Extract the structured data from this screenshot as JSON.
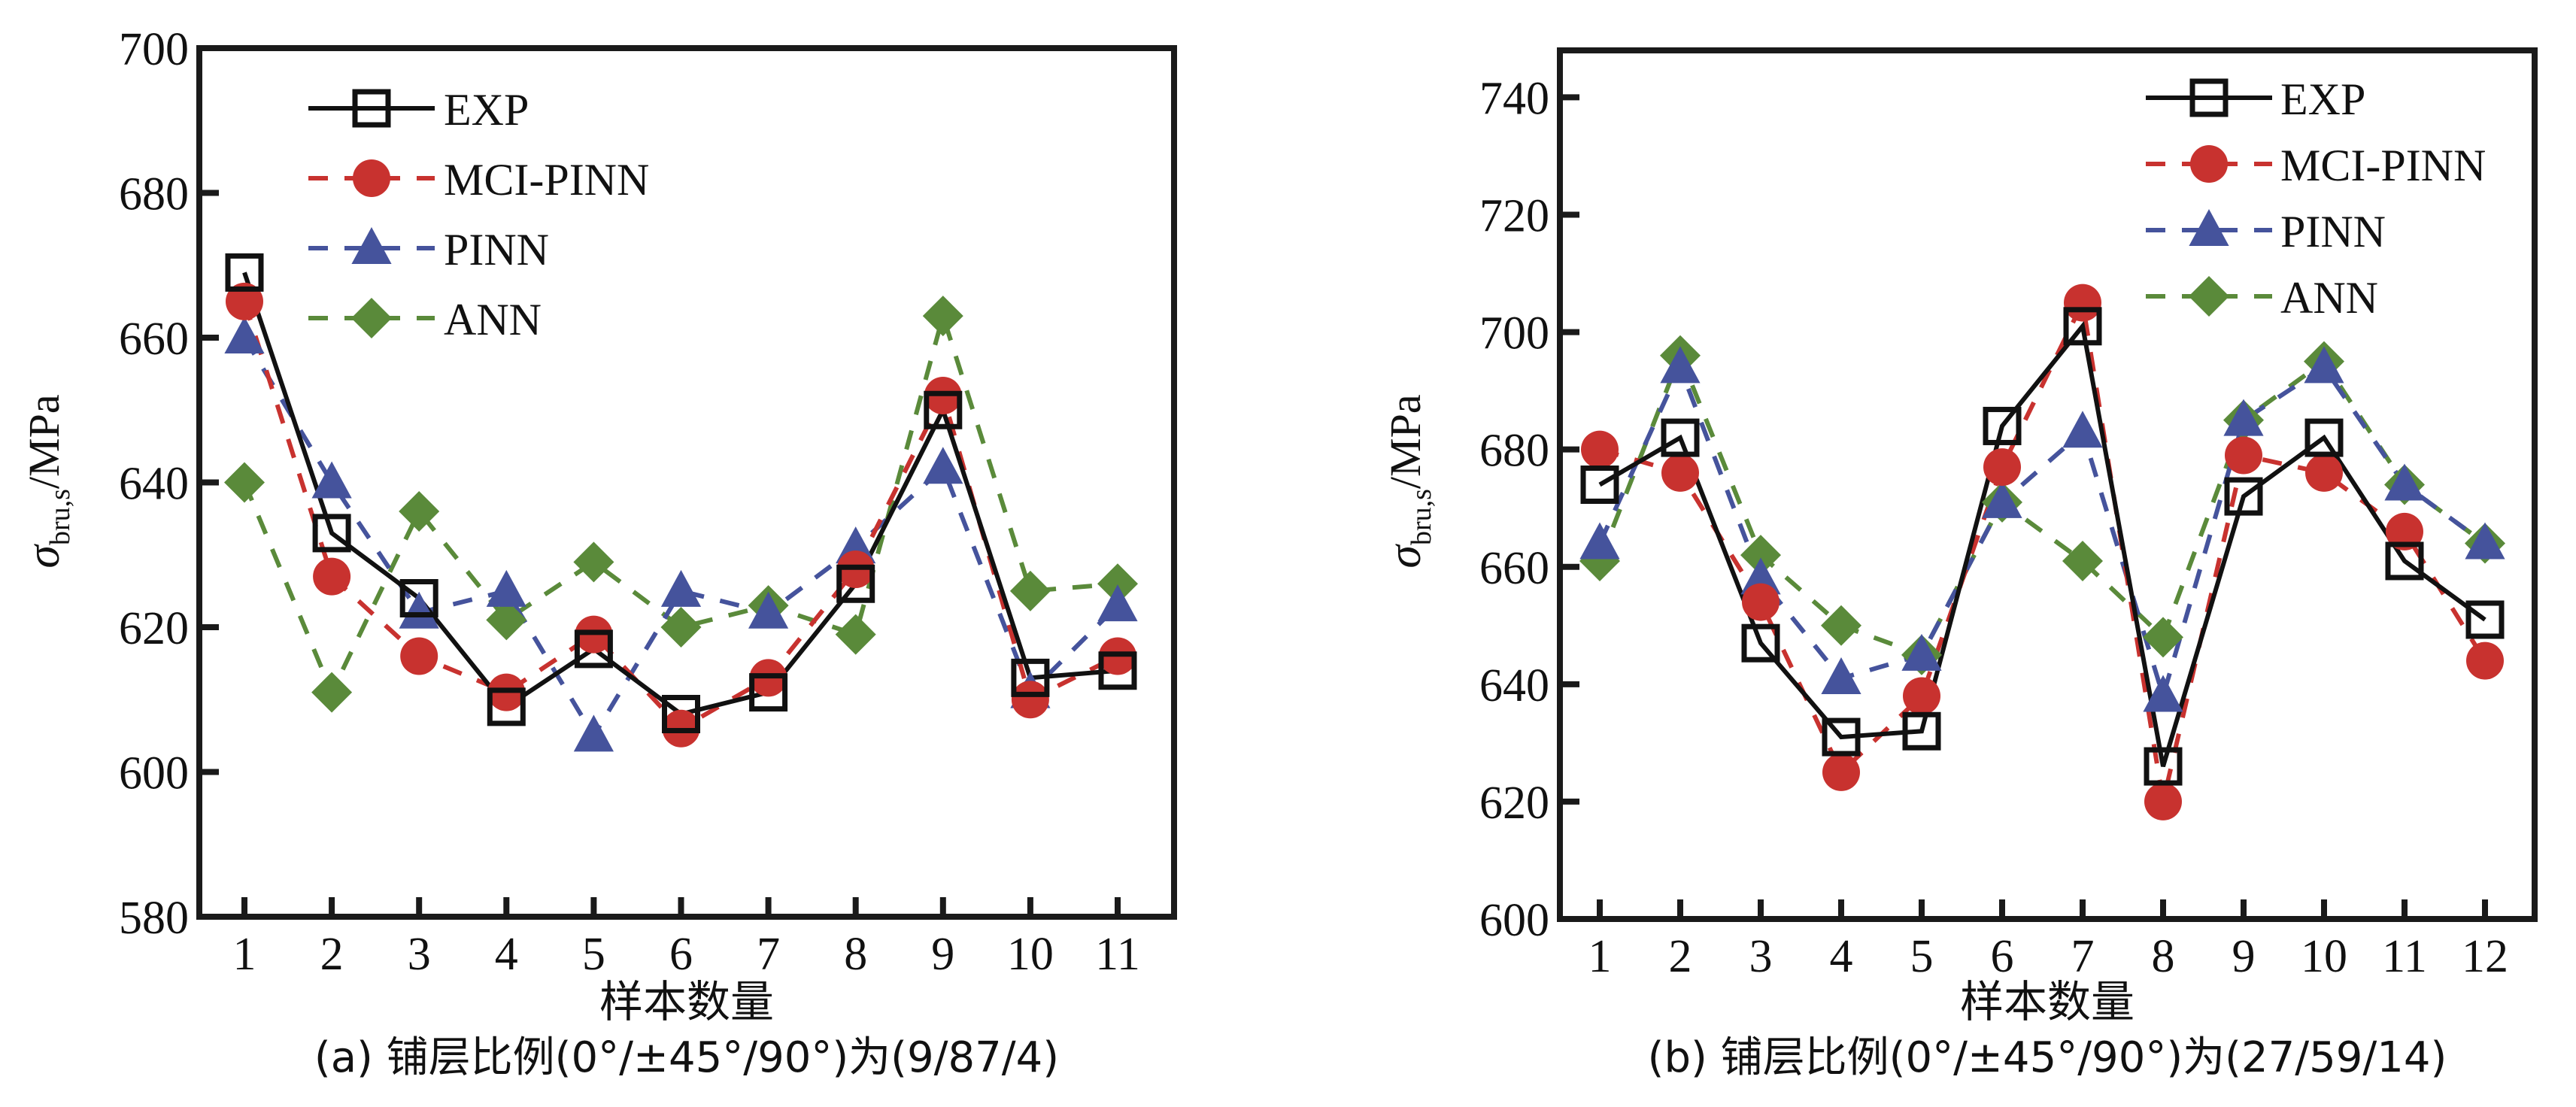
{
  "colors": {
    "EXP": "#111111",
    "MCI-PINN": "#c8322f",
    "PINN": "#45539c",
    "ANN": "#5a8a3a",
    "axis": "#1a1a1a"
  },
  "chart_data": [
    {
      "id": "a",
      "type": "line",
      "title": "",
      "caption": "(a) 铺层比例(0°/±45°/90°)为(9/87/4)",
      "xlabel": "样本数量",
      "ylabel_main": "σ",
      "ylabel_sub": "bru,s",
      "ylabel_unit": "/MPa",
      "x": [
        1,
        2,
        3,
        4,
        5,
        6,
        7,
        8,
        9,
        10,
        11
      ],
      "xtick_labels": [
        "1",
        "2",
        "3",
        "4",
        "5",
        "6",
        "7",
        "8",
        "9",
        "10",
        "11"
      ],
      "ylim": [
        580,
        700
      ],
      "yticks": [
        580,
        600,
        620,
        640,
        660,
        680,
        700
      ],
      "ytick_labels": [
        "580",
        "600",
        "620",
        "640",
        "660",
        "680",
        "700"
      ],
      "grid": false,
      "legend_position": "top-left",
      "series": [
        {
          "name": "EXP",
          "marker": "open-square",
          "linestyle": "solid",
          "values": [
            669,
            633,
            624,
            609,
            617,
            608,
            611,
            626,
            650,
            613,
            614
          ]
        },
        {
          "name": "MCI-PINN",
          "marker": "filled-circle",
          "linestyle": "dashed",
          "values": [
            665,
            627,
            616,
            611,
            619,
            606,
            613,
            628,
            652,
            610,
            616
          ]
        },
        {
          "name": "PINN",
          "marker": "filled-triangle",
          "linestyle": "dashed",
          "values": [
            660,
            640,
            622,
            625,
            605,
            625,
            622,
            631,
            642,
            611,
            623
          ]
        },
        {
          "name": "ANN",
          "marker": "filled-diamond",
          "linestyle": "dashed",
          "values": [
            640,
            611,
            636,
            621,
            629,
            620,
            623,
            619,
            663,
            625,
            626
          ]
        }
      ]
    },
    {
      "id": "b",
      "type": "line",
      "title": "",
      "caption": "(b) 铺层比例(0°/±45°/90°)为(27/59/14)",
      "xlabel": "样本数量",
      "ylabel_main": "σ",
      "ylabel_sub": "bru,s",
      "ylabel_unit": "/MPa",
      "x": [
        1,
        2,
        3,
        4,
        5,
        6,
        7,
        8,
        9,
        10,
        11,
        12
      ],
      "xtick_labels": [
        "1",
        "2",
        "3",
        "4",
        "5",
        "6",
        "7",
        "8",
        "9",
        "10",
        "11",
        "12"
      ],
      "ylim": [
        600,
        748
      ],
      "yticks": [
        600,
        620,
        640,
        660,
        680,
        700,
        720,
        740
      ],
      "ytick_labels": [
        "600",
        "620",
        "640",
        "660",
        "680",
        "700",
        "720",
        "740"
      ],
      "grid": false,
      "legend_position": "top-right",
      "series": [
        {
          "name": "EXP",
          "marker": "open-square",
          "linestyle": "solid",
          "values": [
            674,
            682,
            647,
            631,
            632,
            684,
            701,
            626,
            672,
            682,
            661,
            651
          ]
        },
        {
          "name": "MCI-PINN",
          "marker": "filled-circle",
          "linestyle": "dashed",
          "values": [
            680,
            676,
            654,
            625,
            638,
            677,
            705,
            620,
            679,
            676,
            666,
            644
          ]
        },
        {
          "name": "PINN",
          "marker": "filled-triangle",
          "linestyle": "dashed",
          "values": [
            664,
            694,
            658,
            641,
            645,
            671,
            683,
            638,
            685,
            694,
            674,
            664
          ]
        },
        {
          "name": "ANN",
          "marker": "filled-diamond",
          "linestyle": "dashed",
          "values": [
            661,
            696,
            662,
            650,
            645,
            671,
            661,
            648,
            685,
            695,
            674,
            664
          ]
        }
      ]
    }
  ]
}
